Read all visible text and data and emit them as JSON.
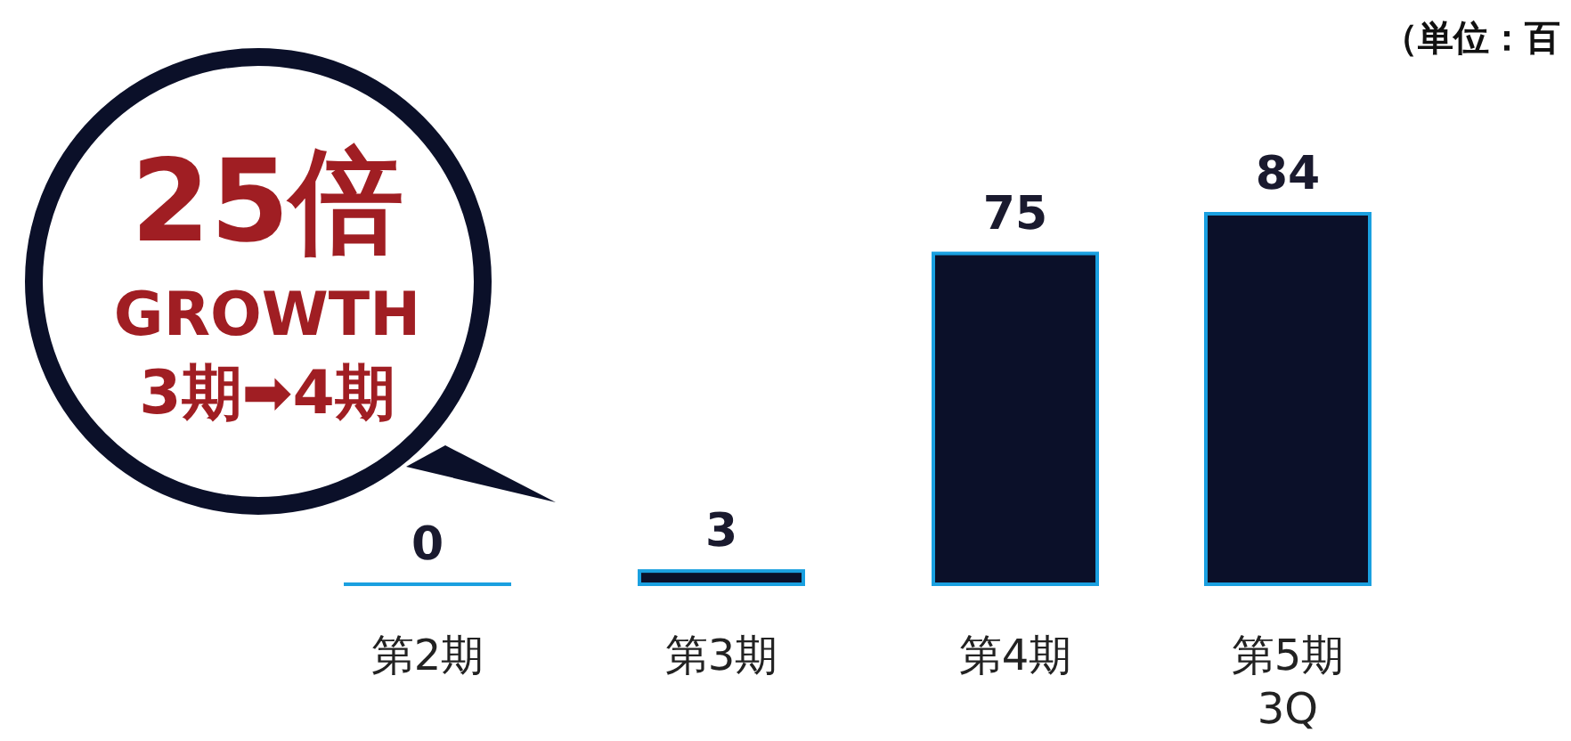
{
  "chart_data": {
    "type": "bar",
    "categories": [
      "第2期",
      "第3期",
      "第4期",
      "第5期\n3Q"
    ],
    "values": [
      0,
      3,
      75,
      84
    ],
    "color": "#0b1029",
    "data_labels": true,
    "annotations": [
      "25倍",
      "GROWTH",
      "3期➡4期",
      "（単位：百"
    ]
  }
}
